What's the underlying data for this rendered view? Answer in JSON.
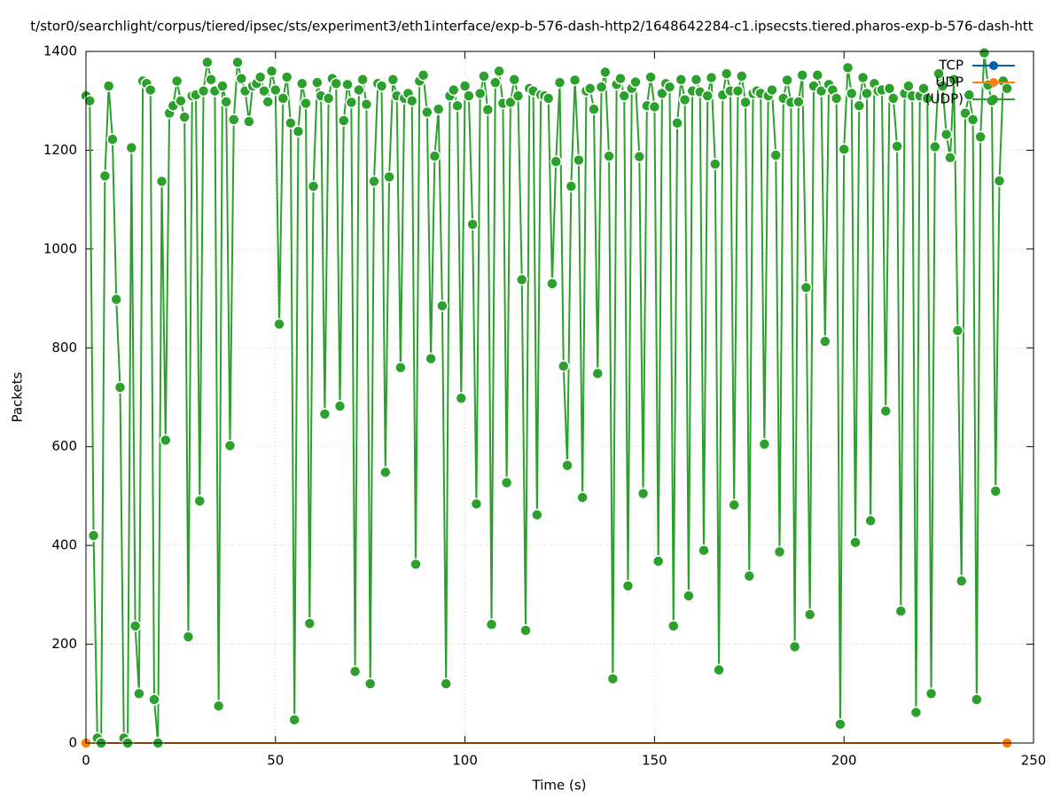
{
  "chart_data": {
    "type": "line",
    "title": "t/stor0/searchlight/corpus/tiered/ipsec/sts/experiment3/eth1interface/exp-b-576-dash-http2/1648642284-c1.ipsecsts.tiered.pharos-exp-b-576-dash-htt",
    "x_label": "Time (s)",
    "y_label": "Packets",
    "xlim": [
      0,
      250
    ],
    "xticks": [
      0,
      50,
      100,
      150,
      200,
      250
    ],
    "ylim": [
      0,
      1400
    ],
    "yticks": [
      0,
      200,
      400,
      600,
      800,
      1000,
      1200,
      1400
    ],
    "grid": true,
    "legend": "top-right",
    "series": [
      {
        "name": "TCP",
        "color": "#0060ad",
        "x": [],
        "values": []
      },
      {
        "name": "UDP",
        "color": "#ff7f0e",
        "x": [
          0,
          243
        ],
        "values": [
          0,
          0
        ]
      },
      {
        "name": "(UDP)",
        "color": "#2ca02c",
        "x": [
          0,
          1,
          2,
          3,
          4,
          5,
          6,
          7,
          8,
          9,
          10,
          11,
          12,
          13,
          14,
          15,
          16,
          17,
          18,
          19,
          20,
          21,
          22,
          23,
          24,
          25,
          26,
          27,
          28,
          29,
          30,
          31,
          32,
          33,
          34,
          35,
          36,
          37,
          38,
          39,
          40,
          41,
          42,
          43,
          44,
          45,
          46,
          47,
          48,
          49,
          50,
          51,
          52,
          53,
          54,
          55,
          56,
          57,
          58,
          59,
          60,
          61,
          62,
          63,
          64,
          65,
          66,
          67,
          68,
          69,
          70,
          71,
          72,
          73,
          74,
          75,
          76,
          77,
          78,
          79,
          80,
          81,
          82,
          83,
          84,
          85,
          86,
          87,
          88,
          89,
          90,
          91,
          92,
          93,
          94,
          95,
          96,
          97,
          98,
          99,
          100,
          101,
          102,
          103,
          104,
          105,
          106,
          107,
          108,
          109,
          110,
          111,
          112,
          113,
          114,
          115,
          116,
          117,
          118,
          119,
          120,
          121,
          122,
          123,
          124,
          125,
          126,
          127,
          128,
          129,
          130,
          131,
          132,
          133,
          134,
          135,
          136,
          137,
          138,
          139,
          140,
          141,
          142,
          143,
          144,
          145,
          146,
          147,
          148,
          149,
          150,
          151,
          152,
          153,
          154,
          155,
          156,
          157,
          158,
          159,
          160,
          161,
          162,
          163,
          164,
          165,
          166,
          167,
          168,
          169,
          170,
          171,
          172,
          173,
          174,
          175,
          176,
          177,
          178,
          179,
          180,
          181,
          182,
          183,
          184,
          185,
          186,
          187,
          188,
          189,
          190,
          191,
          192,
          193,
          194,
          195,
          196,
          197,
          198,
          199,
          200,
          201,
          202,
          203,
          204,
          205,
          206,
          207,
          208,
          209,
          210,
          211,
          212,
          213,
          214,
          215,
          216,
          217,
          218,
          219,
          220,
          221,
          222,
          223,
          224,
          225,
          226,
          227,
          228,
          229,
          230,
          231,
          232,
          233,
          234,
          235,
          236,
          237,
          238,
          239,
          240,
          241,
          242,
          243
        ],
        "values": [
          1310,
          1300,
          420,
          10,
          0,
          1148,
          1330,
          1222,
          898,
          720,
          10,
          0,
          1205,
          237,
          100,
          1340,
          1335,
          1322,
          88,
          0,
          1137,
          613,
          1275,
          1290,
          1340,
          1300,
          1267,
          215,
          1310,
          1312,
          490,
          1320,
          1378,
          1343,
          1320,
          75,
          1330,
          1298,
          602,
          1262,
          1378,
          1345,
          1320,
          1258,
          1330,
          1335,
          1348,
          1320,
          1298,
          1360,
          1322,
          848,
          1305,
          1348,
          1255,
          47,
          1238,
          1335,
          1295,
          242,
          1127,
          1337,
          1310,
          666,
          1305,
          1345,
          1335,
          682,
          1260,
          1333,
          1297,
          145,
          1322,
          1343,
          1293,
          120,
          1137,
          1335,
          1330,
          548,
          1146,
          1343,
          1310,
          760,
          1305,
          1315,
          1300,
          362,
          1340,
          1352,
          1277,
          778,
          1188,
          1283,
          885,
          120,
          1310,
          1322,
          1290,
          698,
          1330,
          1310,
          1050,
          484,
          1315,
          1350,
          1282,
          240,
          1337,
          1360,
          1295,
          527,
          1297,
          1343,
          1310,
          938,
          228,
          1325,
          1320,
          462,
          1312,
          1310,
          1305,
          930,
          1177,
          1337,
          763,
          562,
          1127,
          1342,
          1180,
          497,
          1320,
          1325,
          1283,
          748,
          1328,
          1358,
          1188,
          130,
          1333,
          1345,
          1310,
          318,
          1325,
          1338,
          1187,
          505,
          1290,
          1348,
          1288,
          368,
          1315,
          1335,
          1328,
          237,
          1255,
          1343,
          1302,
          298,
          1320,
          1343,
          1318,
          390,
          1310,
          1347,
          1172,
          148,
          1312,
          1355,
          1320,
          482,
          1320,
          1350,
          1297,
          338,
          1315,
          1320,
          1315,
          605,
          1310,
          1322,
          1190,
          387,
          1305,
          1342,
          1297,
          195,
          1298,
          1352,
          922,
          260,
          1330,
          1352,
          1320,
          813,
          1333,
          1322,
          1305,
          38,
          1202,
          1367,
          1315,
          406,
          1290,
          1347,
          1315,
          450,
          1335,
          1320,
          1322,
          672,
          1325,
          1305,
          1208,
          267,
          1315,
          1330,
          1310,
          62,
          1310,
          1325,
          1305,
          100,
          1207,
          1355,
          1330,
          1232,
          1185,
          1343,
          835,
          328,
          1275,
          1312,
          1262,
          88,
          1227,
          1397,
          1332,
          1300,
          510,
          1138,
          1340,
          1325
        ]
      }
    ]
  }
}
